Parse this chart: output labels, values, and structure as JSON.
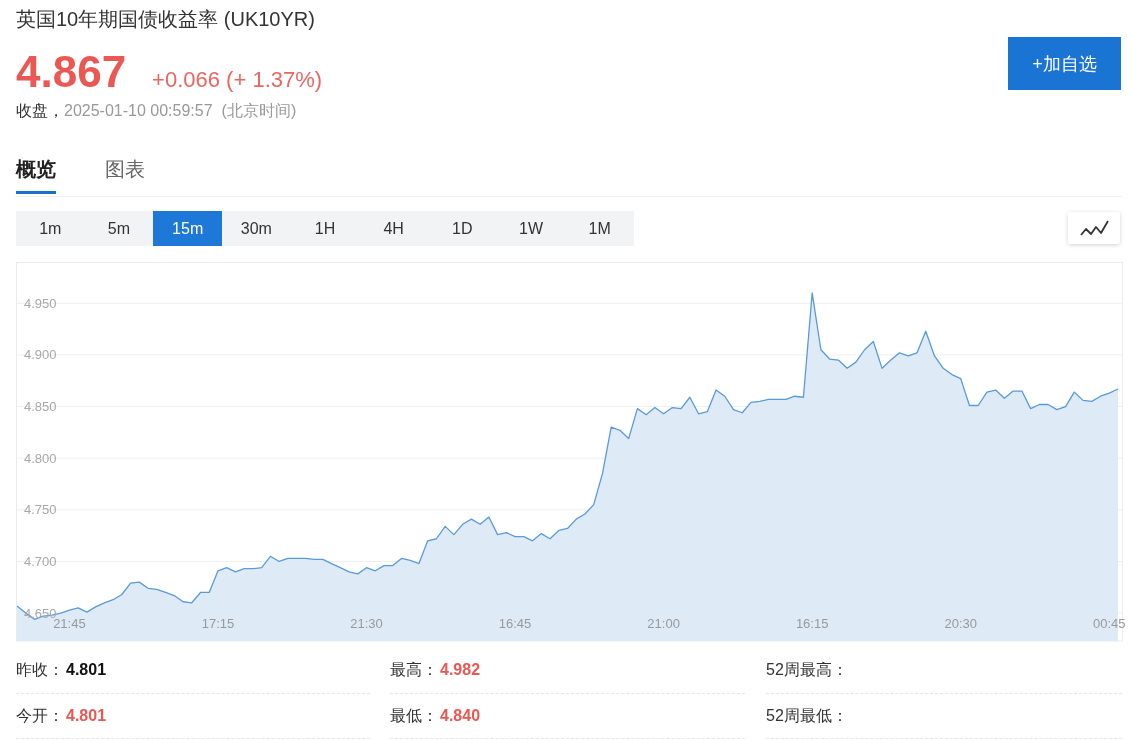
{
  "chart_data": {
    "type": "area",
    "title": "英国10年期国债收益率 (UK10YR)",
    "subtitle": "4.867",
    "categories": [
      null,
      null,
      null,
      null,
      null,
      null,
      "21:45",
      null,
      null,
      null,
      null,
      null,
      null,
      null,
      null,
      null,
      null,
      null,
      null,
      null,
      null,
      null,
      null,
      "17:15",
      null,
      null,
      null,
      null,
      null,
      null,
      null,
      null,
      null,
      null,
      null,
      null,
      null,
      null,
      null,
      null,
      "21:30",
      null,
      null,
      null,
      null,
      null,
      null,
      null,
      null,
      null,
      null,
      null,
      null,
      null,
      null,
      null,
      null,
      "16:45",
      null,
      null,
      null,
      null,
      null,
      null,
      null,
      null,
      null,
      null,
      null,
      null,
      null,
      null,
      null,
      null,
      "21:00",
      null,
      null,
      null,
      null,
      null,
      null,
      null,
      null,
      null,
      null,
      null,
      null,
      null,
      null,
      null,
      null,
      "16:15",
      null,
      null,
      null,
      null,
      null,
      null,
      null,
      null,
      null,
      null,
      null,
      null,
      null,
      null,
      null,
      null,
      "20:30",
      null,
      null,
      null,
      null,
      null,
      null,
      null,
      null,
      null,
      null,
      null,
      null,
      null,
      null,
      null,
      null,
      "00:45",
      null
    ],
    "values": [
      4.657,
      4.65,
      4.644,
      4.647,
      4.648,
      4.65,
      4.653,
      4.655,
      4.651,
      4.656,
      4.66,
      4.663,
      4.668,
      4.679,
      4.68,
      4.674,
      4.673,
      4.67,
      4.667,
      4.661,
      4.66,
      4.67,
      4.67,
      4.691,
      4.694,
      4.69,
      4.693,
      4.693,
      4.694,
      4.705,
      4.7,
      4.703,
      4.703,
      4.703,
      4.702,
      4.702,
      4.698,
      4.694,
      4.69,
      4.688,
      4.694,
      4.691,
      4.696,
      4.696,
      4.703,
      4.701,
      4.698,
      4.72,
      4.722,
      4.734,
      4.726,
      4.736,
      4.741,
      4.736,
      4.743,
      4.726,
      4.728,
      4.724,
      4.724,
      4.72,
      4.727,
      4.722,
      4.73,
      4.732,
      4.741,
      4.746,
      4.755,
      4.785,
      4.83,
      4.827,
      4.819,
      4.848,
      4.842,
      4.849,
      4.843,
      4.849,
      4.848,
      4.859,
      4.843,
      4.845,
      4.866,
      4.86,
      4.847,
      4.844,
      4.854,
      4.855,
      4.857,
      4.857,
      4.857,
      4.86,
      4.859,
      4.96,
      4.905,
      4.896,
      4.895,
      4.887,
      4.893,
      4.905,
      4.913,
      4.887,
      4.895,
      4.902,
      4.899,
      4.902,
      4.923,
      4.899,
      4.887,
      4.881,
      4.877,
      4.851,
      4.851,
      4.864,
      4.866,
      4.858,
      4.865,
      4.865,
      4.848,
      4.852,
      4.852,
      4.847,
      4.85,
      4.864,
      4.856,
      4.855,
      4.86,
      4.863,
      4.867
    ],
    "color": "#5a9ad8",
    "ylim": [
      4.623,
      4.989
    ],
    "yticks": [
      {
        "value": 4.65,
        "label": "4.650"
      },
      {
        "value": 4.7,
        "label": "4.700"
      },
      {
        "value": 4.75,
        "label": "4.750"
      },
      {
        "value": 4.8,
        "label": "4.800"
      },
      {
        "value": 4.85,
        "label": "4.850"
      },
      {
        "value": 4.9,
        "label": "4.900"
      },
      {
        "value": 4.95,
        "label": "4.950"
      }
    ],
    "grid": "y",
    "annotations": [
      "+0.066 (+ 1.37%)",
      "收盘，",
      "2025-01-10 00:59:57",
      "(北京时间)",
      "概览",
      "图表",
      "1m",
      "5m",
      "15m",
      "30m",
      "1H",
      "4H",
      "1D",
      "1W",
      "1M",
      "+加自选",
      "昨收：",
      "4.801",
      "最高：",
      "4.982",
      "52周最高：",
      "今开：",
      "4.801",
      "最低：",
      "4.840",
      "52周最低："
    ]
  }
}
